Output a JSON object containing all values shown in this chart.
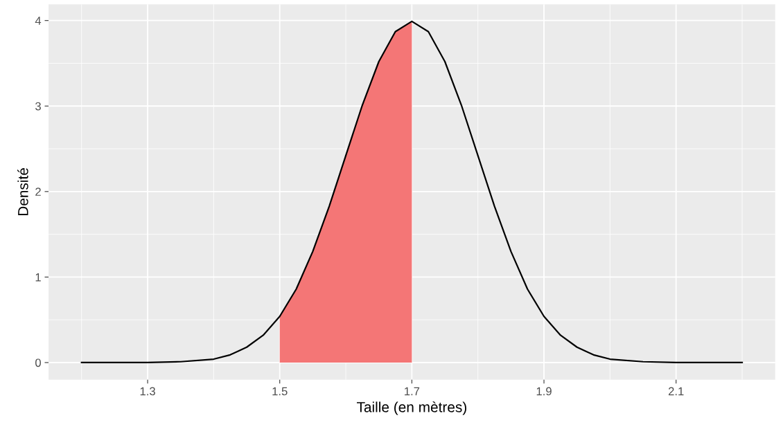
{
  "chart_data": {
    "type": "line",
    "xlabel": "Taille (en mètres)",
    "ylabel": "Densité",
    "xlim": [
      1.15,
      2.25
    ],
    "ylim": [
      -0.2,
      4.19
    ],
    "xticks": [
      1.3,
      1.5,
      1.7,
      1.9,
      2.1
    ],
    "yticks": [
      0,
      1,
      2,
      3,
      4
    ],
    "grid": true,
    "series": [
      {
        "type": "area",
        "color": "#f47676",
        "x": [
          1.5,
          1.525,
          1.55,
          1.575,
          1.6,
          1.625,
          1.65,
          1.675,
          1.7
        ],
        "values": [
          0.54,
          0.86,
          1.3,
          1.83,
          2.42,
          3.01,
          3.52,
          3.87,
          3.99
        ]
      },
      {
        "color": "#000000",
        "x": [
          1.2,
          1.25,
          1.3,
          1.35,
          1.4,
          1.425,
          1.45,
          1.475,
          1.5,
          1.525,
          1.55,
          1.575,
          1.6,
          1.625,
          1.65,
          1.675,
          1.7,
          1.725,
          1.75,
          1.775,
          1.8,
          1.825,
          1.85,
          1.875,
          1.9,
          1.925,
          1.95,
          1.975,
          2.0,
          2.05,
          2.1,
          2.15,
          2.2
        ],
        "values": [
          0.0,
          0.0,
          0.0,
          0.01,
          0.04,
          0.09,
          0.18,
          0.32,
          0.54,
          0.86,
          1.3,
          1.83,
          2.42,
          3.01,
          3.52,
          3.87,
          3.99,
          3.87,
          3.52,
          3.01,
          2.42,
          1.83,
          1.3,
          0.86,
          0.54,
          0.32,
          0.18,
          0.09,
          0.04,
          0.01,
          0.0,
          0.0,
          0.0
        ]
      }
    ]
  }
}
